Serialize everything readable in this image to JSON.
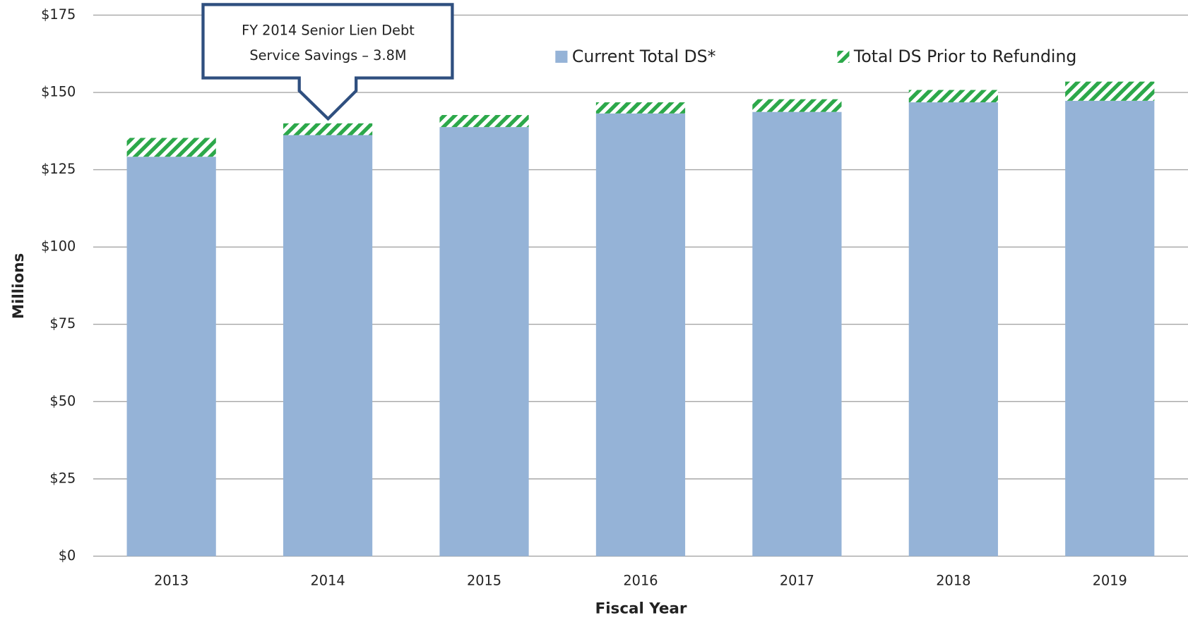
{
  "chart_data": {
    "type": "bar",
    "stacked": true,
    "annotation": [
      "FY 2014 Senior Lien Debt",
      "Service Savings – 3.8M"
    ],
    "xlabel": "Fiscal Year",
    "ylabel": "Millions",
    "categories": [
      "2013",
      "2014",
      "2015",
      "2016",
      "2017",
      "2018",
      "2019"
    ],
    "series": [
      {
        "name": "Current Total DS*",
        "color": "#95b3d7",
        "values": [
          129.2,
          136.2,
          138.8,
          143.2,
          143.7,
          146.8,
          147.3
        ]
      },
      {
        "name": "Total DS Prior to Refunding",
        "color": "#2ca84a",
        "pattern": "hatch",
        "values": [
          6.1,
          3.8,
          3.9,
          3.6,
          4.1,
          4.0,
          6.2
        ]
      }
    ],
    "ylim": [
      0,
      175
    ],
    "yticks": [
      {
        "value": 0,
        "label": "$0"
      },
      {
        "value": 25,
        "label": "$25"
      },
      {
        "value": 50,
        "label": "$50"
      },
      {
        "value": 75,
        "label": "$75"
      },
      {
        "value": 100,
        "label": "$100"
      },
      {
        "value": 125,
        "label": "$125"
      },
      {
        "value": 150,
        "label": "$150"
      },
      {
        "value": 175,
        "label": "$175"
      }
    ],
    "grid": true
  }
}
